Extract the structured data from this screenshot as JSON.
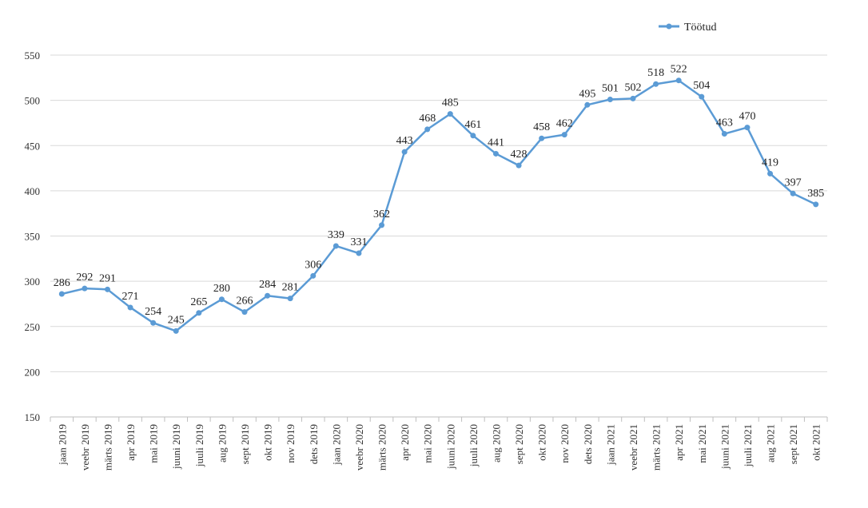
{
  "chart_data": {
    "type": "line",
    "title": "",
    "xlabel": "",
    "ylabel": "",
    "ylim": [
      150,
      550
    ],
    "yticks": [
      150,
      200,
      250,
      300,
      350,
      400,
      450,
      500,
      550
    ],
    "grid": true,
    "legend_position": "top-right",
    "categories": [
      "jaan 2019",
      "veebr 2019",
      "märts 2019",
      "apr 2019",
      "mai 2019",
      "juuni 2019",
      "juuli 2019",
      "aug 2019",
      "sept 2019",
      "okt 2019",
      "nov 2019",
      "dets 2019",
      "jaan 2020",
      "veebr 2020",
      "märts 2020",
      "apr 2020",
      "mai 2020",
      "juuni 2020",
      "juuli 2020",
      "aug 2020",
      "sept 2020",
      "okt 2020",
      "nov 2020",
      "dets 2020",
      "jaan 2021",
      "veebr 2021",
      "märts 2021",
      "apr 2021",
      "mai 2021",
      "juuni 2021",
      "juuli 2021",
      "aug 2021",
      "sept 2021",
      "okt 2021"
    ],
    "series": [
      {
        "name": "Töötud",
        "color": "#5B9BD5",
        "values": [
          286,
          292,
          291,
          271,
          254,
          245,
          265,
          280,
          266,
          284,
          281,
          306,
          339,
          331,
          362,
          443,
          468,
          485,
          461,
          441,
          428,
          458,
          462,
          495,
          501,
          502,
          518,
          522,
          504,
          463,
          470,
          419,
          397,
          385
        ]
      }
    ]
  }
}
